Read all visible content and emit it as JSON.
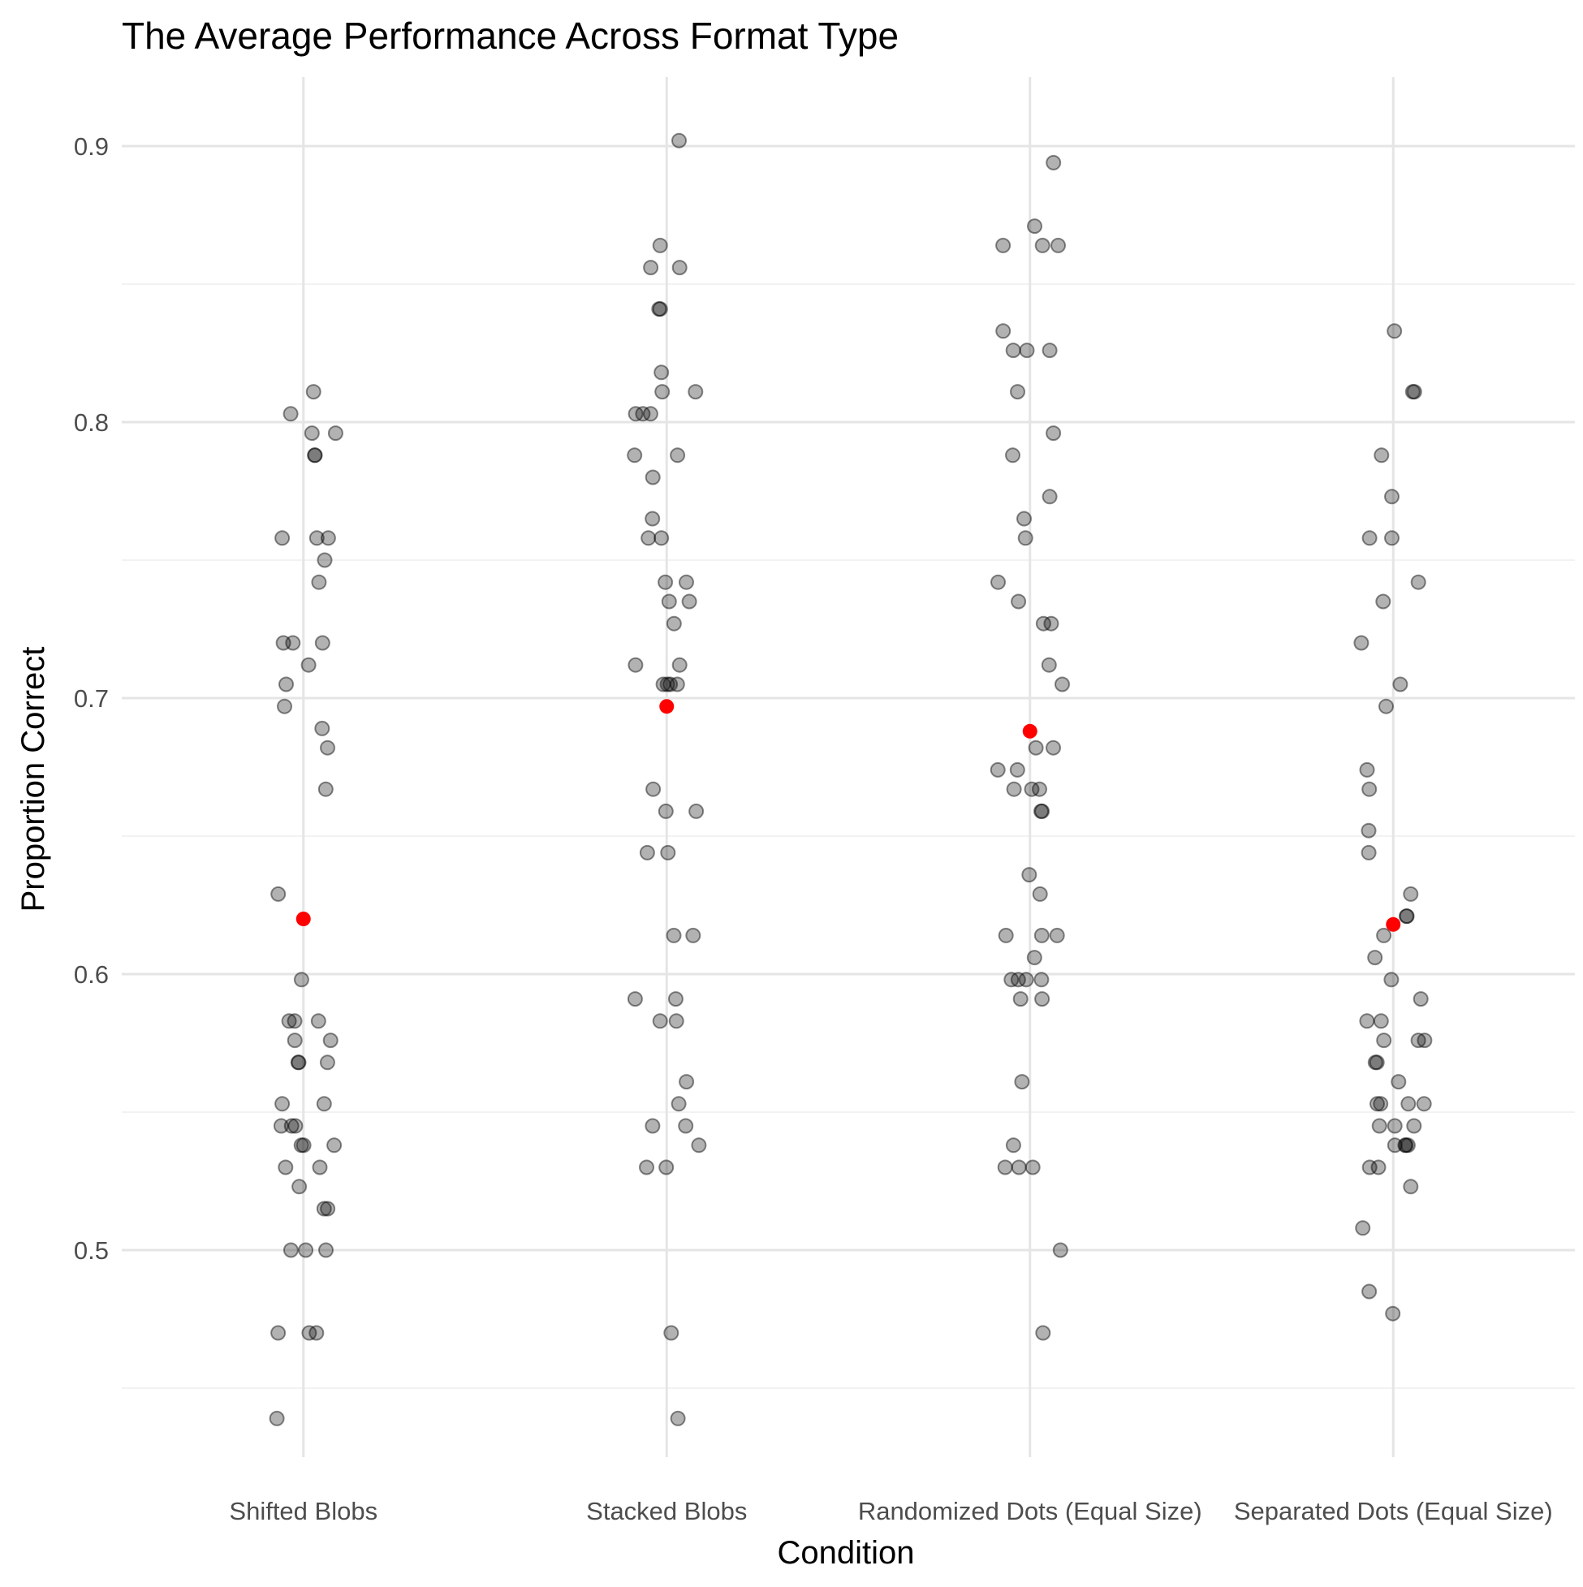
{
  "chart_data": {
    "type": "scatter",
    "title": "The Average Performance Across Format Type",
    "xlabel": "Condition",
    "ylabel": "Proportion Correct",
    "categories": [
      "Shifted Blobs",
      "Stacked Blobs",
      "Randomized Dots (Equal Size)",
      "Separated Dots (Equal Size)"
    ],
    "y_ticks": [
      "0.5",
      "0.6",
      "0.7",
      "0.8",
      "0.9"
    ],
    "ylim": [
      0.425,
      0.925
    ],
    "grid": true,
    "colors": {
      "points": "#000000",
      "mean": "#ff0000",
      "grid_major": "#e5e5e5",
      "grid_minor": "#ededed"
    },
    "series": [
      {
        "values": [
          0.811,
          0.803,
          0.796,
          0.796,
          0.788,
          0.788,
          0.758,
          0.758,
          0.758,
          0.75,
          0.742,
          0.72,
          0.72,
          0.72,
          0.712,
          0.705,
          0.697,
          0.689,
          0.682,
          0.667,
          0.629,
          0.598,
          0.583,
          0.583,
          0.583,
          0.576,
          0.576,
          0.568,
          0.568,
          0.568,
          0.553,
          0.553,
          0.545,
          0.545,
          0.545,
          0.538,
          0.538,
          0.538,
          0.53,
          0.53,
          0.523,
          0.515,
          0.515,
          0.5,
          0.5,
          0.5,
          0.47,
          0.47,
          0.47,
          0.439
        ],
        "mean": 0.62
      },
      {
        "values": [
          0.902,
          0.864,
          0.856,
          0.856,
          0.841,
          0.841,
          0.818,
          0.811,
          0.811,
          0.803,
          0.803,
          0.803,
          0.788,
          0.788,
          0.78,
          0.765,
          0.758,
          0.758,
          0.742,
          0.742,
          0.735,
          0.735,
          0.727,
          0.712,
          0.712,
          0.705,
          0.705,
          0.705,
          0.705,
          0.667,
          0.659,
          0.659,
          0.644,
          0.644,
          0.614,
          0.614,
          0.591,
          0.591,
          0.583,
          0.583,
          0.561,
          0.553,
          0.545,
          0.545,
          0.538,
          0.53,
          0.53,
          0.47,
          0.439
        ],
        "mean": 0.697
      },
      {
        "values": [
          0.894,
          0.871,
          0.864,
          0.864,
          0.864,
          0.833,
          0.826,
          0.826,
          0.826,
          0.811,
          0.796,
          0.788,
          0.773,
          0.765,
          0.758,
          0.742,
          0.735,
          0.727,
          0.727,
          0.712,
          0.705,
          0.682,
          0.682,
          0.674,
          0.674,
          0.667,
          0.667,
          0.667,
          0.659,
          0.659,
          0.636,
          0.629,
          0.614,
          0.614,
          0.614,
          0.606,
          0.598,
          0.598,
          0.598,
          0.598,
          0.591,
          0.591,
          0.561,
          0.538,
          0.53,
          0.53,
          0.53,
          0.5,
          0.47
        ],
        "mean": 0.688
      },
      {
        "values": [
          0.833,
          0.811,
          0.811,
          0.788,
          0.773,
          0.758,
          0.758,
          0.742,
          0.735,
          0.72,
          0.705,
          0.697,
          0.674,
          0.667,
          0.652,
          0.644,
          0.629,
          0.621,
          0.621,
          0.614,
          0.606,
          0.598,
          0.591,
          0.583,
          0.583,
          0.576,
          0.576,
          0.576,
          0.568,
          0.568,
          0.561,
          0.553,
          0.553,
          0.553,
          0.553,
          0.545,
          0.545,
          0.545,
          0.538,
          0.538,
          0.538,
          0.538,
          0.53,
          0.53,
          0.523,
          0.508,
          0.485,
          0.477
        ],
        "mean": 0.618
      }
    ]
  }
}
